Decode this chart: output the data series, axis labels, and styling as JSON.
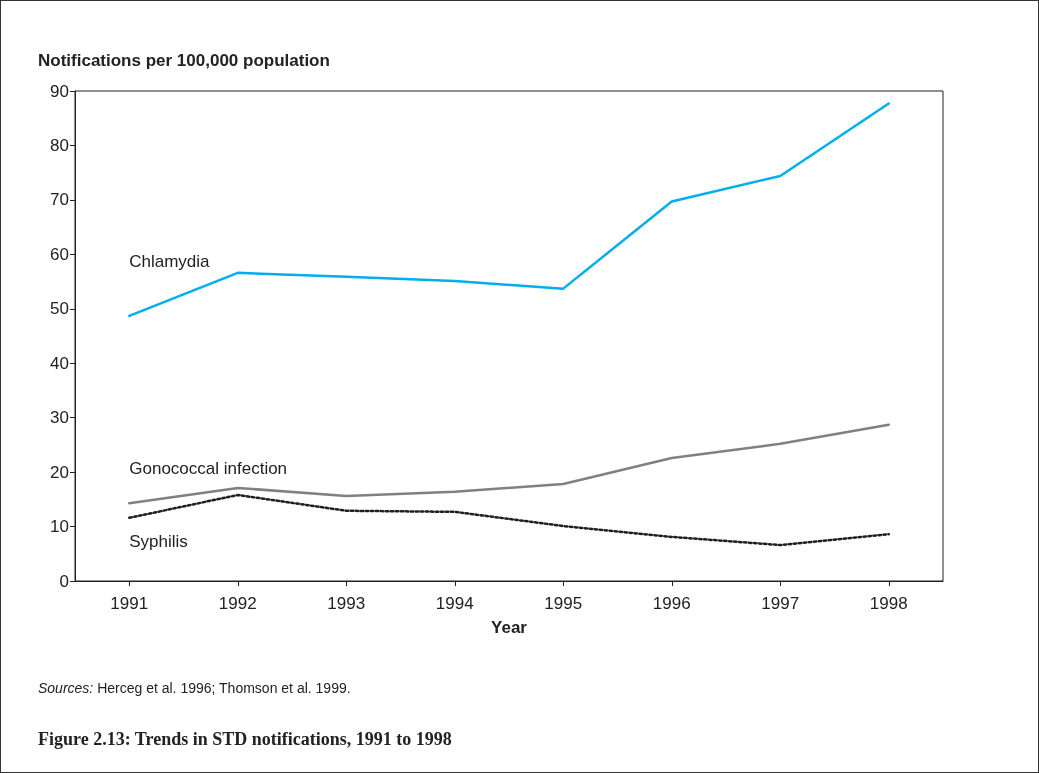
{
  "chart_data": {
    "type": "line",
    "title": "Figure 2.13: Trends in STD notifications, 1991 to 1998",
    "xlabel": "Year",
    "ylabel": "Notifications per 100,000 population",
    "annotations": [
      "Sources: Herceg et al. 1996; Thomson et al. 1999."
    ],
    "categories": [
      "1991",
      "1992",
      "1993",
      "1994",
      "1995",
      "1996",
      "1997",
      "1998"
    ],
    "series": [
      {
        "name": "Chlamydia",
        "color": "#00aeef",
        "values": [
          48.7,
          56.6,
          55.9,
          55.1,
          53.7,
          69.7,
          74.4,
          87.7
        ]
      },
      {
        "name": "Gonococcal infection",
        "color": "#808080",
        "values": [
          14.3,
          17.1,
          15.6,
          16.4,
          17.8,
          22.6,
          25.2,
          28.7
        ]
      },
      {
        "name": "Syphilis",
        "color": "#231f20",
        "line_style": "dotted",
        "values": [
          11.6,
          15.8,
          12.9,
          12.7,
          10.1,
          8.1,
          6.6,
          8.6
        ]
      }
    ],
    "ylim": [
      0,
      90
    ],
    "yticks": [
      0,
      10,
      20,
      30,
      40,
      50,
      60,
      70,
      80,
      90
    ],
    "grid": false,
    "legend": false,
    "marker": "none",
    "line_style": "solid"
  }
}
